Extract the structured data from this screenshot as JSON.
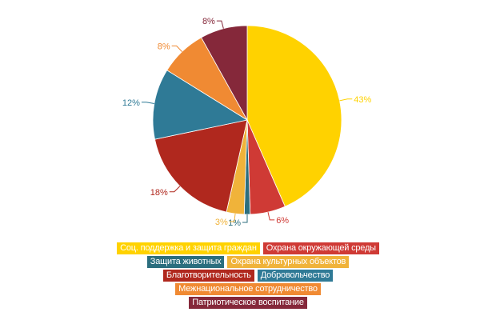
{
  "chart_data": {
    "type": "pie",
    "start": "top, clockwise",
    "slices": [
      {
        "name": "Соц. поддержка и защита граждан",
        "value": 43,
        "label": "43%",
        "color": "#FFD200"
      },
      {
        "name": "Охрана окружающей среды",
        "value": 6,
        "label": "6%",
        "color": "#CF3A35"
      },
      {
        "name": "Защита животных",
        "value": 1,
        "label": "1%",
        "color": "#2B6E7E"
      },
      {
        "name": "Охрана культурных объектов",
        "value": 3,
        "label": "3%",
        "color": "#F0B33A"
      },
      {
        "name": "Благотворительность",
        "value": 18,
        "label": "18%",
        "color": "#B0281E"
      },
      {
        "name": "Добровольчество",
        "value": 12,
        "label": "12%",
        "color": "#2F7A96"
      },
      {
        "name": "Межнациональное сотрудничество",
        "value": 8,
        "label": "8%",
        "color": "#F08A33"
      },
      {
        "name": "Патриотическое воспитание",
        "value": 8,
        "label": "8%",
        "color": "#85283A"
      }
    ],
    "legend_placement": "bottom",
    "legend_rows": [
      [
        0,
        1
      ],
      [
        2,
        3
      ],
      [
        4,
        5
      ],
      [
        6
      ],
      [
        7
      ]
    ]
  }
}
